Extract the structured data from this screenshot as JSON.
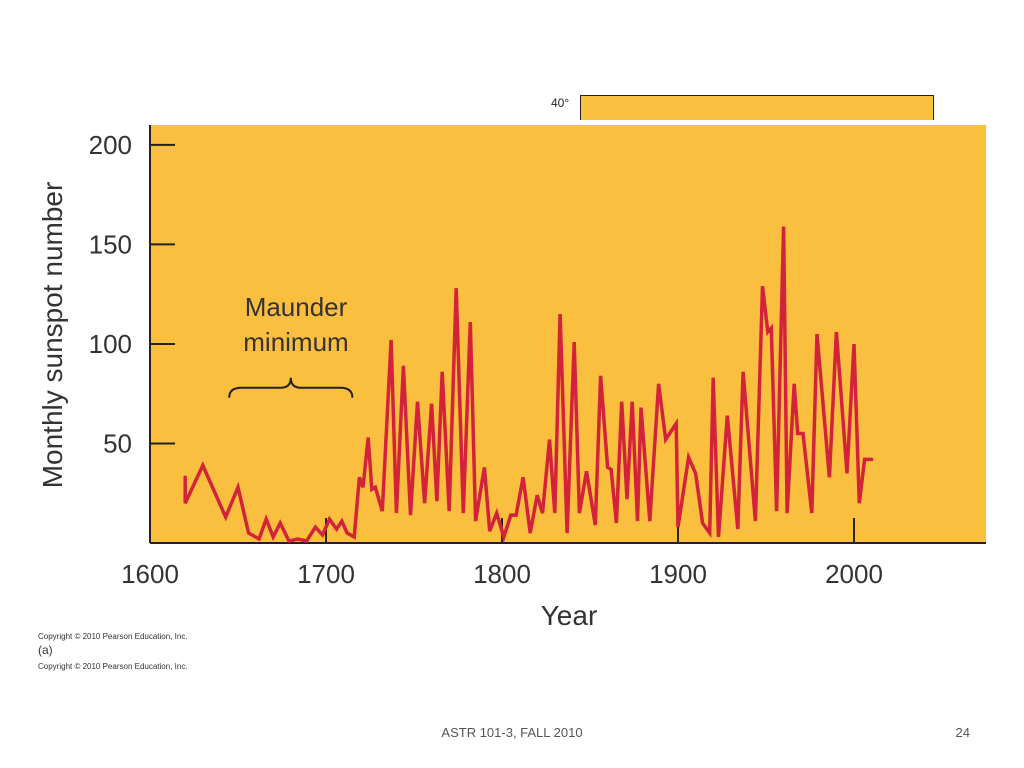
{
  "inset": {
    "label": "40°"
  },
  "chart_data": {
    "type": "line",
    "title": "",
    "xlabel": "Year",
    "ylabel": "Monthly sunspot number",
    "xlim": [
      1600,
      2075
    ],
    "ylim": [
      0,
      210
    ],
    "xticks": [
      1600,
      1700,
      1800,
      1900,
      2000
    ],
    "yticks": [
      50,
      100,
      150,
      200
    ],
    "background": "#fbbf3f",
    "line_color": "#d2233a",
    "annotation": {
      "text_line1": "Maunder",
      "text_line2": "minimum",
      "x_start": 1645,
      "x_end": 1715,
      "y": 78
    },
    "series": [
      {
        "x": [
          1620,
          1620,
          1630,
          1643,
          1650,
          1656,
          1662,
          1666,
          1670,
          1674,
          1679,
          1684,
          1689,
          1694,
          1698,
          1702,
          1706,
          1709,
          1712,
          1716,
          1719,
          1721,
          1724,
          1726,
          1728,
          1732,
          1737,
          1740,
          1744,
          1748,
          1752,
          1756,
          1760,
          1763,
          1766,
          1770,
          1774,
          1778,
          1782,
          1785,
          1790,
          1793,
          1797,
          1801,
          1805,
          1808,
          1812,
          1816,
          1820,
          1823,
          1827,
          1830,
          1833,
          1837,
          1841,
          1844,
          1848,
          1853,
          1856,
          1860,
          1862,
          1865,
          1868,
          1871,
          1874,
          1877,
          1879,
          1884,
          1889,
          1893,
          1899,
          1900,
          1906,
          1910,
          1914,
          1918,
          1920,
          1923,
          1928,
          1934,
          1937,
          1944,
          1948,
          1951,
          1953,
          1956,
          1960,
          1962,
          1966,
          1968,
          1971,
          1976,
          1979,
          1986,
          1990,
          1996,
          2000,
          2003,
          2006,
          2010
        ],
        "y": [
          33,
          20,
          39,
          13,
          28,
          5,
          2,
          12,
          3,
          10,
          1,
          2,
          1,
          8,
          4,
          12,
          7,
          11,
          5,
          3,
          33,
          28,
          53,
          27,
          28,
          16,
          102,
          15,
          89,
          14,
          71,
          20,
          70,
          21,
          86,
          16,
          128,
          15,
          111,
          11,
          38,
          6,
          15,
          3,
          14,
          14,
          33,
          5,
          24,
          15,
          52,
          15,
          115,
          5,
          101,
          15,
          36,
          9,
          84,
          38,
          37,
          10,
          71,
          22,
          71,
          11,
          68,
          11,
          80,
          52,
          60,
          8,
          43,
          35,
          10,
          5,
          83,
          3,
          64,
          7,
          86,
          11,
          129,
          106,
          108,
          16,
          159,
          15,
          80,
          55,
          55,
          15,
          105,
          33,
          106,
          35,
          100,
          20,
          42,
          42
        ]
      }
    ]
  },
  "copyright": {
    "line1": "Copyright © 2010 Pearson Education, Inc.",
    "panel_label": "(a)",
    "line2": "Copyright © 2010 Pearson Education, Inc."
  },
  "footer": {
    "course": "ASTR 101-3, FALL 2010",
    "page": "24"
  }
}
